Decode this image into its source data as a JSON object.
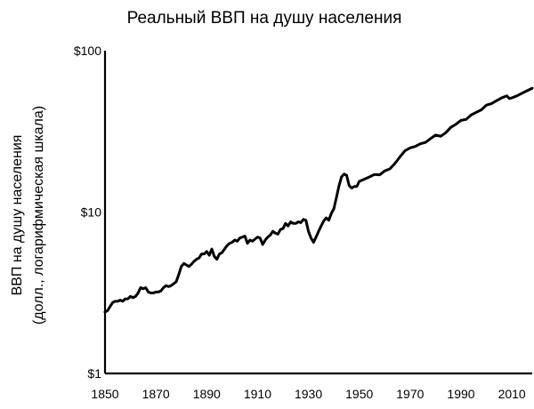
{
  "chart_data": {
    "type": "line",
    "title": "Реальный ВВП на душу населения",
    "xlabel": "",
    "ylabel": "ВВП на душу населения",
    "ylabel_note": "(долл., логарифмическая шкала)",
    "y_scale": "log",
    "ylim": [
      1,
      100
    ],
    "xlim": [
      1850,
      2018
    ],
    "x_ticks": [
      1850,
      1870,
      1890,
      1910,
      1930,
      1950,
      1970,
      1990,
      2010
    ],
    "y_ticks": [
      {
        "value": 1,
        "label": "$1"
      },
      {
        "value": 10,
        "label": "$10"
      },
      {
        "value": 100,
        "label": "$100"
      }
    ],
    "line_color": "#000000",
    "grid": false,
    "series": [
      {
        "x": [
          1850,
          1851,
          1852,
          1853,
          1854,
          1855,
          1856,
          1857,
          1858,
          1859,
          1860,
          1861,
          1862,
          1863,
          1864,
          1865,
          1866,
          1867,
          1868,
          1869,
          1870,
          1871,
          1872,
          1873,
          1874,
          1875,
          1876,
          1877,
          1878,
          1879,
          1880,
          1881,
          1882,
          1883,
          1884,
          1885,
          1886,
          1887,
          1888,
          1889,
          1890,
          1891,
          1892,
          1893,
          1894,
          1895,
          1896,
          1897,
          1898,
          1899,
          1900,
          1901,
          1902,
          1903,
          1904,
          1905,
          1906,
          1907,
          1908,
          1909,
          1910,
          1911,
          1912,
          1913,
          1914,
          1915,
          1916,
          1917,
          1918,
          1919,
          1920,
          1921,
          1922,
          1923,
          1924,
          1925,
          1926,
          1927,
          1928,
          1929,
          1930,
          1931,
          1932,
          1933,
          1934,
          1935,
          1936,
          1937,
          1938,
          1939,
          1940,
          1941,
          1942,
          1943,
          1944,
          1945,
          1946,
          1947,
          1948,
          1949,
          1950,
          1952,
          1954,
          1956,
          1958,
          1960,
          1962,
          1964,
          1966,
          1968,
          1970,
          1972,
          1974,
          1976,
          1978,
          1980,
          1982,
          1984,
          1986,
          1988,
          1990,
          1992,
          1994,
          1996,
          1998,
          2000,
          2002,
          2004,
          2006,
          2008,
          2009,
          2010,
          2012,
          2014,
          2016,
          2018
        ],
        "values": [
          2.4,
          2.45,
          2.6,
          2.75,
          2.8,
          2.8,
          2.85,
          2.8,
          2.9,
          2.9,
          3.0,
          2.95,
          3.0,
          3.15,
          3.4,
          3.35,
          3.4,
          3.2,
          3.15,
          3.15,
          3.2,
          3.2,
          3.25,
          3.4,
          3.5,
          3.45,
          3.5,
          3.6,
          3.7,
          4.1,
          4.6,
          4.8,
          4.7,
          4.6,
          4.75,
          4.95,
          5.1,
          5.2,
          5.5,
          5.5,
          5.7,
          5.4,
          5.9,
          5.3,
          5.1,
          5.5,
          5.6,
          5.9,
          6.2,
          6.4,
          6.5,
          6.7,
          6.6,
          6.9,
          7.0,
          7.1,
          6.4,
          6.7,
          6.6,
          6.8,
          7.0,
          6.9,
          6.3,
          6.7,
          7.0,
          7.2,
          7.6,
          7.4,
          7.3,
          7.8,
          7.9,
          8.5,
          8.2,
          8.7,
          8.5,
          8.5,
          8.7,
          8.6,
          9.0,
          8.9,
          7.6,
          6.9,
          6.5,
          7.0,
          7.6,
          8.2,
          8.8,
          9.2,
          8.9,
          9.8,
          10.5,
          12.3,
          14.5,
          16.5,
          17.2,
          16.9,
          14.6,
          14.1,
          14.4,
          14.4,
          15.5,
          16.0,
          16.5,
          17.1,
          17.0,
          18.0,
          18.5,
          20.0,
          22.0,
          24.0,
          25.0,
          25.5,
          26.5,
          27.0,
          28.5,
          30.0,
          29.5,
          31.0,
          33.5,
          35.0,
          37.0,
          37.5,
          40.0,
          41.5,
          43.0,
          46.0,
          47.0,
          49.0,
          51.0,
          52.5,
          50.5,
          51.0,
          52.5,
          54.5,
          56.5,
          58.5
        ]
      }
    ]
  }
}
